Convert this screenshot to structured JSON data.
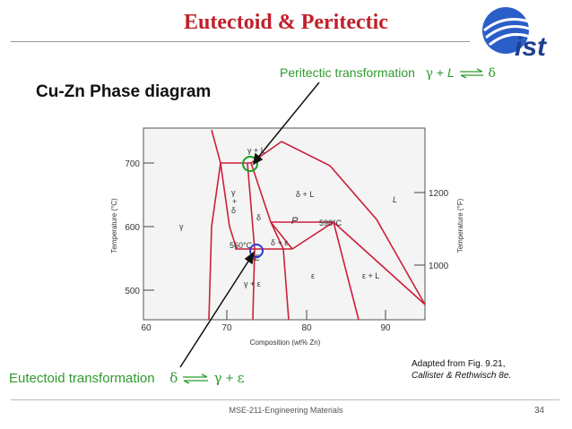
{
  "slide": {
    "title": "Eutectoid & Peritectic",
    "subtitle": "Cu-Zn Phase diagram",
    "page_number": "34",
    "footer": "MSE-211-Engineering Materials",
    "logo_text": "ist"
  },
  "annotations": {
    "peritectic": {
      "text": "Peritectic transformation",
      "reactant1": "γ",
      "plus": "+",
      "reactant2": "L",
      "product": "δ"
    },
    "eutectoid": {
      "text": "Eutectoid transformation",
      "reactant": "δ",
      "product1": "γ",
      "plus": "+",
      "product2": "ε"
    }
  },
  "source": {
    "line1": "Adapted from Fig. 9.21,",
    "line2": "Callister & Rethwisch 8e."
  },
  "diagram": {
    "xlabel": "Composition (wt% Zn)",
    "ylabel_left": "Temperature (°C)",
    "ylabel_right": "Temperature (°F)",
    "x_ticks": [
      "60",
      "70",
      "80",
      "90"
    ],
    "y_ticks_left": [
      "700",
      "600",
      "500"
    ],
    "y_ticks_right": [
      "1200",
      "1000"
    ],
    "phase_labels": {
      "gamma": "γ",
      "gamma_delta": [
        "γ",
        "+",
        "δ"
      ],
      "gamma_L": "γ + L",
      "delta": "δ",
      "delta_L": "δ + L",
      "L": "L",
      "P": "P",
      "t598": "598°C",
      "t560": "560°C",
      "delta_eps": "δ + ε",
      "E": "E",
      "gamma_eps": "γ + ε",
      "eps": "ε",
      "eps_L": "ε + L"
    },
    "colors": {
      "phase_lines": "#cc1f3a",
      "peritectic_marker": "#1aa31a",
      "eutectoid_marker": "#2a3ad0",
      "axis": "#444444"
    }
  }
}
